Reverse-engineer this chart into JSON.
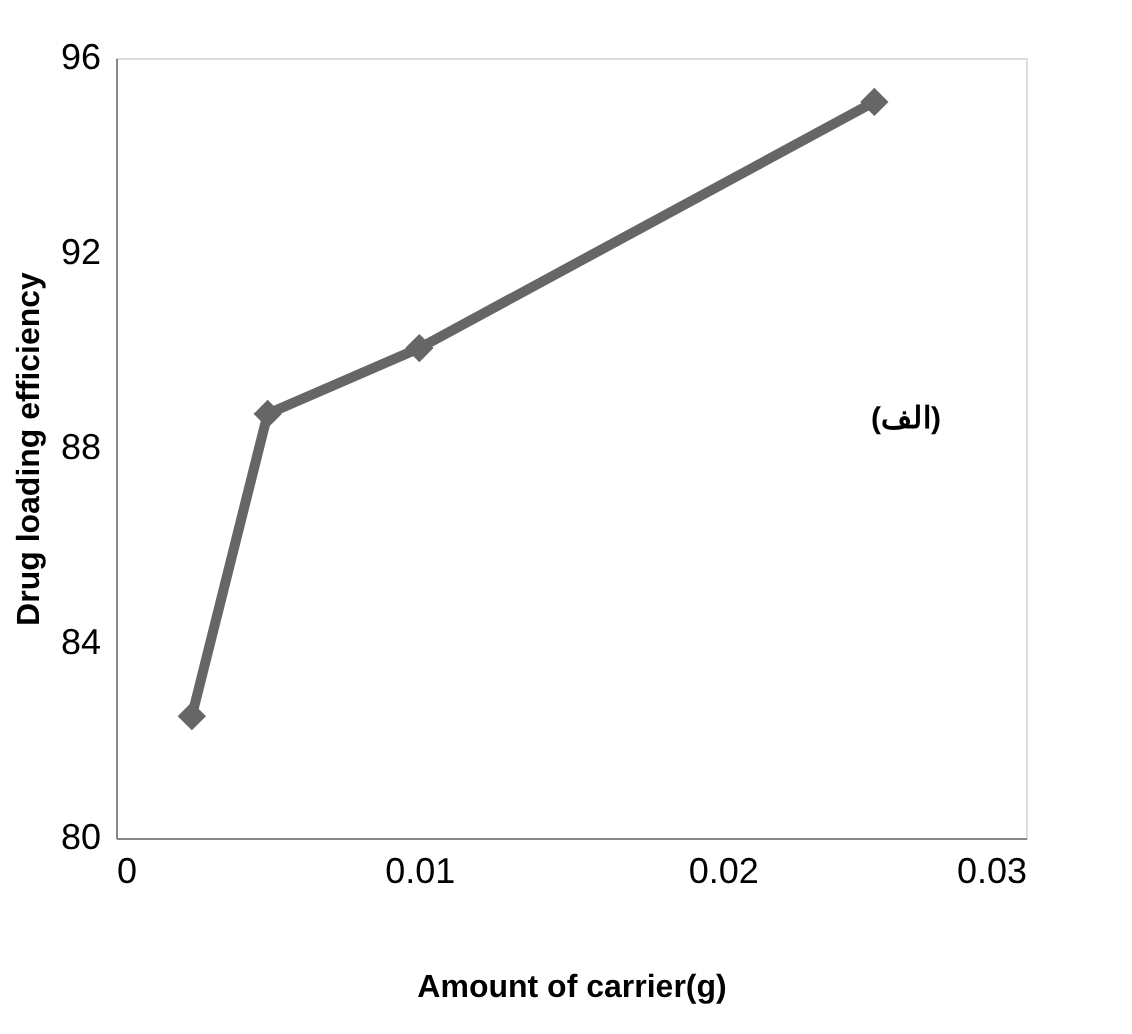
{
  "chart_data": {
    "type": "line",
    "xlabel": "Amount of carrier(g)",
    "ylabel": "Drug loading efficiency",
    "annotations": [
      "(الف)"
    ],
    "x": [
      0.0025,
      0.005,
      0.01,
      0.025
    ],
    "series": [
      {
        "color": "#666666",
        "values": [
          82.5,
          88.7,
          90.05,
          95.1
        ]
      }
    ],
    "xlim": [
      0,
      0.03
    ],
    "xticks": [
      0,
      0.01,
      0.02,
      0.03
    ],
    "ylim": [
      80,
      96
    ],
    "yticks": [
      80,
      84,
      88,
      92,
      96
    ],
    "grid": false,
    "legend": false,
    "marker": "diamond",
    "line_style": "solid"
  }
}
